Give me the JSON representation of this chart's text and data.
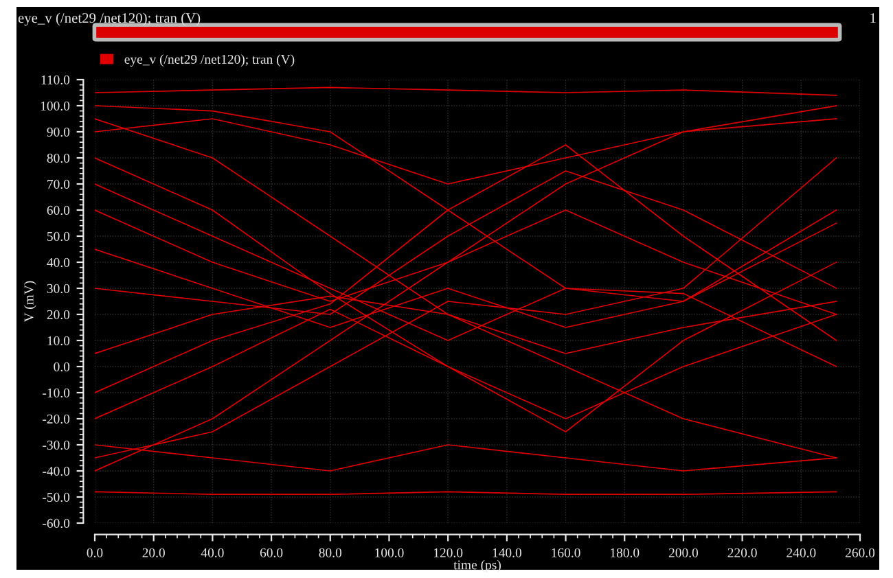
{
  "chart_data": {
    "type": "line",
    "title": "eye_v (/net29 /net120); tran (V)",
    "xlabel": "time (ps)",
    "ylabel": "V (mV)",
    "annotations": [
      "1"
    ],
    "x": [
      0,
      40,
      80,
      120,
      160,
      200,
      252
    ],
    "series": [
      {
        "name": "eye_v (/net29 /net120); tran (V)",
        "color": "#e00000",
        "values": [
          105,
          106,
          107,
          106,
          105,
          106,
          104
        ]
      },
      {
        "color": "#e00000",
        "values": [
          -48,
          -49,
          -49,
          -48,
          -49,
          -49,
          -48
        ]
      },
      {
        "color": "#e00000",
        "values": [
          95,
          80,
          50,
          20,
          0,
          -20,
          -35
        ]
      },
      {
        "color": "#e00000",
        "values": [
          -40,
          -20,
          10,
          40,
          70,
          90,
          100
        ]
      },
      {
        "color": "#e00000",
        "values": [
          5,
          20,
          27,
          20,
          5,
          15,
          25
        ]
      },
      {
        "color": "#e00000",
        "values": [
          60,
          40,
          25,
          40,
          60,
          40,
          20
        ]
      },
      {
        "color": "#e00000",
        "values": [
          -20,
          0,
          22,
          0,
          -20,
          0,
          20
        ]
      },
      {
        "color": "#e00000",
        "values": [
          80,
          60,
          28,
          0,
          -25,
          10,
          40
        ]
      },
      {
        "color": "#e00000",
        "values": [
          30,
          25,
          20,
          50,
          75,
          60,
          30
        ]
      },
      {
        "color": "#e00000",
        "values": [
          90,
          95,
          85,
          70,
          80,
          90,
          95
        ]
      },
      {
        "color": "#e00000",
        "values": [
          -30,
          -35,
          -40,
          -30,
          -35,
          -40,
          -35
        ]
      },
      {
        "color": "#e00000",
        "values": [
          70,
          50,
          30,
          10,
          30,
          28,
          0
        ]
      },
      {
        "color": "#e00000",
        "values": [
          -10,
          10,
          24,
          60,
          85,
          50,
          10
        ]
      },
      {
        "color": "#e00000",
        "values": [
          100,
          98,
          90,
          60,
          30,
          25,
          60
        ]
      },
      {
        "color": "#e00000",
        "values": [
          45,
          30,
          15,
          30,
          15,
          25,
          55
        ]
      },
      {
        "color": "#e00000",
        "values": [
          -35,
          -25,
          0,
          25,
          20,
          30,
          80
        ]
      }
    ],
    "xlim": [
      0,
      260
    ],
    "ylim": [
      -60,
      110
    ],
    "xticks": [
      {
        "value": 0,
        "label": "0.0"
      },
      {
        "value": 20,
        "label": "20.0"
      },
      {
        "value": 40,
        "label": "40.0"
      },
      {
        "value": 60,
        "label": "60.0"
      },
      {
        "value": 80,
        "label": "80.0"
      },
      {
        "value": 100,
        "label": "100.0"
      },
      {
        "value": 120,
        "label": "120.0"
      },
      {
        "value": 140,
        "label": "140.0"
      },
      {
        "value": 160,
        "label": "160.0"
      },
      {
        "value": 180,
        "label": "180.0"
      },
      {
        "value": 200,
        "label": "200.0"
      },
      {
        "value": 220,
        "label": "220.0"
      },
      {
        "value": 240,
        "label": "240.0"
      },
      {
        "value": 260,
        "label": "260.0"
      }
    ],
    "yticks": [
      {
        "value": -60,
        "label": "-60.0"
      },
      {
        "value": -50,
        "label": "-50.0"
      },
      {
        "value": -40,
        "label": "-40.0"
      },
      {
        "value": -30,
        "label": "-30.0"
      },
      {
        "value": -20,
        "label": "-20.0"
      },
      {
        "value": -10,
        "label": "-10.0"
      },
      {
        "value": 0,
        "label": "0.0"
      },
      {
        "value": 10,
        "label": "10.0"
      },
      {
        "value": 20,
        "label": "20.0"
      },
      {
        "value": 30,
        "label": "30.0"
      },
      {
        "value": 40,
        "label": "40.0"
      },
      {
        "value": 50,
        "label": "50.0"
      },
      {
        "value": 60,
        "label": "60.0"
      },
      {
        "value": 70,
        "label": "70.0"
      },
      {
        "value": 80,
        "label": "80.0"
      },
      {
        "value": 90,
        "label": "90.0"
      },
      {
        "value": 100,
        "label": "100.0"
      },
      {
        "value": 110,
        "label": "110.0"
      }
    ],
    "grid": true,
    "legend": "top left",
    "marker": "none",
    "line_style": "solid"
  }
}
